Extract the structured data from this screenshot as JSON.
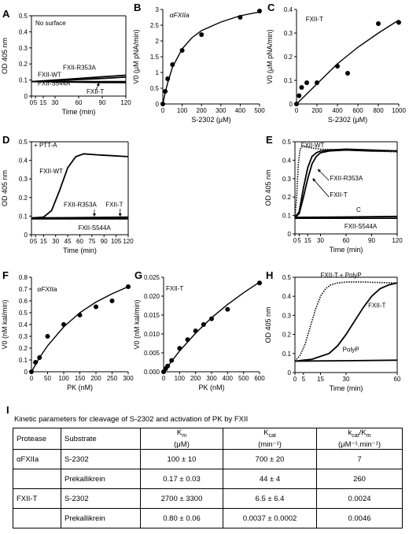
{
  "chart_data": [
    {
      "panel": "A",
      "type": "line",
      "xlabel": "Time (min)",
      "ylabel": "OD 405 nm",
      "xlim": [
        0,
        120
      ],
      "ylim": [
        0,
        0.5
      ],
      "xticks": [
        0,
        5,
        15,
        30,
        60,
        90,
        120
      ],
      "xtick_labels": [
        "0",
        "5",
        "15",
        "30",
        "60",
        "90",
        "120"
      ],
      "yticks": [
        0,
        0.1,
        0.2,
        0.3,
        0.4,
        0.5
      ],
      "annotations": [
        "No surface"
      ],
      "series": [
        {
          "name": "FXII-WT",
          "x": [
            0,
            30,
            60,
            90,
            120
          ],
          "y": [
            0.09,
            0.096,
            0.103,
            0.11,
            0.118
          ]
        },
        {
          "name": "FXII-R353A",
          "x": [
            0,
            30,
            60,
            90,
            120
          ],
          "y": [
            0.09,
            0.1,
            0.11,
            0.12,
            0.13
          ]
        },
        {
          "name": "FXII-S544A",
          "x": [
            0,
            30,
            60,
            90,
            120
          ],
          "y": [
            0.09,
            0.09,
            0.09,
            0.09,
            0.09
          ]
        },
        {
          "name": "FXII-T",
          "x": [
            0,
            30,
            60,
            90,
            120
          ],
          "y": [
            0.09,
            0.088,
            0.087,
            0.085,
            0.084
          ]
        }
      ]
    },
    {
      "panel": "B",
      "type": "scatter",
      "xlabel": "S-2302 (μM)",
      "ylabel": "V0 (μM pNA/min)",
      "xlim": [
        0,
        500
      ],
      "ylim": [
        0,
        3
      ],
      "xticks": [
        0,
        100,
        200,
        300,
        400,
        500
      ],
      "yticks": [
        0,
        0.5,
        1,
        1.5,
        2,
        2.5,
        3
      ],
      "legend": "αFXIIa",
      "points": {
        "x": [
          0,
          12.5,
          25,
          50,
          100,
          200,
          400,
          500
        ],
        "y": [
          0,
          0.4,
          0.8,
          1.25,
          1.7,
          2.2,
          2.75,
          2.95
        ]
      },
      "fit": {
        "x": [
          0,
          12.5,
          25,
          50,
          100,
          150,
          200,
          300,
          400,
          500
        ],
        "y": [
          0,
          0.37,
          0.67,
          1.17,
          1.75,
          2.1,
          2.33,
          2.6,
          2.8,
          2.92
        ]
      }
    },
    {
      "panel": "C",
      "type": "scatter",
      "xlabel": "S-2302 (μM)",
      "ylabel": "V0 (μM pNA/min)",
      "xlim": [
        0,
        1000
      ],
      "ylim": [
        0,
        0.4
      ],
      "xticks": [
        0,
        200,
        400,
        600,
        800,
        1000
      ],
      "yticks": [
        0,
        0.1,
        0.2,
        0.3,
        0.4
      ],
      "legend": "FXII-T",
      "points": {
        "x": [
          0,
          25,
          50,
          100,
          200,
          400,
          500,
          800,
          1000
        ],
        "y": [
          0,
          0.035,
          0.07,
          0.09,
          0.09,
          0.16,
          0.13,
          0.34,
          0.345
        ]
      },
      "fit": {
        "x": [
          0,
          200,
          400,
          600,
          800,
          1000
        ],
        "y": [
          0,
          0.085,
          0.17,
          0.24,
          0.3,
          0.355
        ]
      }
    },
    {
      "panel": "D",
      "type": "line",
      "xlabel": "Time (min)",
      "ylabel": "OD 405 nm",
      "xlim": [
        0,
        120
      ],
      "ylim": [
        0,
        0.5
      ],
      "xticks": [
        0,
        5,
        15,
        30,
        45,
        60,
        75,
        90,
        105,
        120
      ],
      "xtick_labels": [
        "0",
        "5",
        "15",
        "30",
        "45",
        "60",
        "75",
        "90",
        "105",
        "120"
      ],
      "yticks": [
        0,
        0.1,
        0.2,
        0.3,
        0.4,
        0.5
      ],
      "annotations": [
        "+ PTT-A"
      ],
      "series": [
        {
          "name": "FXII-WT",
          "x": [
            0,
            15,
            25,
            35,
            45,
            55,
            65,
            80,
            100,
            120
          ],
          "y": [
            0.09,
            0.095,
            0.13,
            0.24,
            0.36,
            0.42,
            0.435,
            0.43,
            0.425,
            0.42
          ]
        },
        {
          "name": "FXII-R353A",
          "x": [
            0,
            60,
            120
          ],
          "y": [
            0.09,
            0.09,
            0.092
          ]
        },
        {
          "name": "FXII-T",
          "x": [
            0,
            60,
            120
          ],
          "y": [
            0.09,
            0.092,
            0.095
          ]
        },
        {
          "name": "FXII-S544A",
          "x": [
            0,
            60,
            120
          ],
          "y": [
            0.085,
            0.085,
            0.085
          ]
        }
      ]
    },
    {
      "panel": "E",
      "type": "line",
      "xlabel": "Time (min)",
      "ylabel": "OD 405 nm",
      "xlim": [
        0,
        120
      ],
      "ylim": [
        0,
        0.5
      ],
      "xticks": [
        0,
        5,
        15,
        30,
        60,
        90,
        120
      ],
      "xtick_labels": [
        "0",
        "5",
        "15",
        "30",
        "60",
        "90",
        "120"
      ],
      "yticks": [
        0,
        0.1,
        0.2,
        0.3,
        0.4,
        0.5
      ],
      "series": [
        {
          "name": "FXII-WT",
          "x": [
            0,
            2,
            4,
            6,
            9,
            15,
            30,
            60,
            90,
            120
          ],
          "y": [
            0.09,
            0.2,
            0.38,
            0.46,
            0.475,
            0.47,
            0.46,
            0.455,
            0.45,
            0.445
          ]
        },
        {
          "name": "FXII-R353A",
          "x": [
            0,
            5,
            10,
            15,
            20,
            25,
            30,
            40,
            60,
            90,
            120
          ],
          "y": [
            0.09,
            0.12,
            0.25,
            0.36,
            0.42,
            0.44,
            0.45,
            0.455,
            0.46,
            0.455,
            0.45
          ]
        },
        {
          "name": "FXII-T",
          "x": [
            0,
            5,
            10,
            15,
            20,
            25,
            30,
            40,
            60,
            90,
            120
          ],
          "y": [
            0.09,
            0.11,
            0.2,
            0.3,
            0.38,
            0.42,
            0.44,
            0.45,
            0.455,
            0.45,
            0.45
          ]
        },
        {
          "name": "C",
          "x": [
            0,
            60,
            120
          ],
          "y": [
            0.09,
            0.092,
            0.095
          ]
        },
        {
          "name": "FXII-S544A",
          "x": [
            0,
            60,
            120
          ],
          "y": [
            0.085,
            0.085,
            0.085
          ]
        }
      ]
    },
    {
      "panel": "F",
      "type": "scatter",
      "xlabel": "PK (nM)",
      "ylabel": "V0 (nM kal/min)",
      "xlim": [
        0,
        300
      ],
      "ylim": [
        0,
        0.8
      ],
      "xticks": [
        0,
        50,
        100,
        150,
        200,
        250,
        300
      ],
      "yticks": [
        0,
        0.1,
        0.2,
        0.3,
        0.4,
        0.5,
        0.6,
        0.7,
        0.8
      ],
      "legend": "αFXIIa",
      "points": {
        "x": [
          0,
          12.5,
          25,
          50,
          100,
          150,
          200,
          250,
          300
        ],
        "y": [
          0,
          0.08,
          0.12,
          0.3,
          0.4,
          0.48,
          0.55,
          0.6,
          0.72
        ]
      },
      "fit": {
        "x": [
          0,
          25,
          50,
          100,
          150,
          200,
          250,
          300
        ],
        "y": [
          0,
          0.12,
          0.22,
          0.38,
          0.5,
          0.59,
          0.66,
          0.72
        ]
      }
    },
    {
      "panel": "G",
      "type": "scatter",
      "xlabel": "PK (nM)",
      "ylabel": "V0 (nM kal/min)",
      "xlim": [
        0,
        600
      ],
      "ylim": [
        0,
        0.025
      ],
      "xticks": [
        0,
        100,
        200,
        300,
        400,
        500,
        600
      ],
      "yticks": [
        0,
        0.005,
        0.01,
        0.015,
        0.02,
        0.025
      ],
      "ytick_labels": [
        "0.000",
        "0.005",
        "0.010",
        "0.015",
        "0.020",
        "0.025"
      ],
      "legend": "FXII-T",
      "points": {
        "x": [
          0,
          12.5,
          25,
          50,
          100,
          150,
          200,
          250,
          300,
          400,
          600
        ],
        "y": [
          0,
          0.0008,
          0.0015,
          0.003,
          0.0062,
          0.0085,
          0.0108,
          0.0125,
          0.014,
          0.0165,
          0.0235
        ]
      },
      "fit": {
        "x": [
          0,
          100,
          200,
          300,
          400,
          500,
          600
        ],
        "y": [
          0,
          0.0055,
          0.0102,
          0.0143,
          0.0178,
          0.0209,
          0.0237
        ]
      }
    },
    {
      "panel": "H",
      "type": "line",
      "xlabel": "Time (min)",
      "ylabel": "OD 405 nm",
      "xlim": [
        0,
        60
      ],
      "ylim": [
        0,
        0.5
      ],
      "xticks": [
        0,
        5,
        15,
        30,
        60
      ],
      "xtick_labels": [
        "0",
        "5",
        "15",
        "30",
        "60"
      ],
      "yticks": [
        0,
        0.1,
        0.2,
        0.3,
        0.4,
        0.5
      ],
      "series": [
        {
          "name": "FXII-T + PolyP",
          "x": [
            0,
            3,
            6,
            9,
            12,
            15,
            18,
            21,
            25,
            30,
            40,
            60
          ],
          "y": [
            0.06,
            0.09,
            0.15,
            0.24,
            0.33,
            0.4,
            0.44,
            0.46,
            0.47,
            0.475,
            0.475,
            0.47
          ]
        },
        {
          "name": "FXII-T",
          "x": [
            0,
            10,
            20,
            25,
            30,
            35,
            40,
            45,
            50,
            55,
            60
          ],
          "y": [
            0.06,
            0.07,
            0.1,
            0.14,
            0.2,
            0.27,
            0.34,
            0.4,
            0.44,
            0.46,
            0.47
          ]
        },
        {
          "name": "PolyP",
          "x": [
            0,
            30,
            60
          ],
          "y": [
            0.06,
            0.062,
            0.065
          ]
        }
      ]
    }
  ],
  "table": {
    "letter": "I",
    "caption": "Kinetic parameters for cleavage of S-2302 and activation of PK by FXII",
    "headers": {
      "protease": "Protease",
      "substrate": "Substrate",
      "km": "Km",
      "km_unit": "(μM)",
      "kcat": "Kcat",
      "kcat_unit": "(min⁻¹)",
      "ratio": "kcat/Km",
      "ratio_unit": "(μM⁻¹.min⁻¹)"
    },
    "rows": [
      {
        "protease": "αFXIIa",
        "substrate": "S-2302",
        "km": "100 ± 10",
        "kcat": "700 ± 20",
        "ratio": "7"
      },
      {
        "protease": "",
        "substrate": "Prekallikrein",
        "km": "0.17 ± 0.03",
        "kcat": "44 ± 4",
        "ratio": "260"
      },
      {
        "protease": "FXII-T",
        "substrate": "S-2302",
        "km": "2700 ± 3300",
        "kcat": "6.5 ± 6.4",
        "ratio": "0.0024"
      },
      {
        "protease": "",
        "substrate": "Prekallikrein",
        "km": "0.80 ± 0.06",
        "kcat": "0.0037 ± 0.0002",
        "ratio": "0.0046"
      }
    ]
  }
}
